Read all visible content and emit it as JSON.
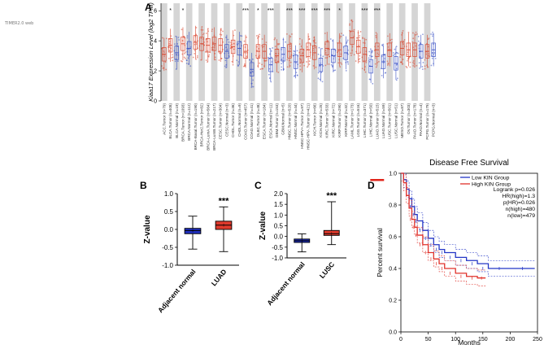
{
  "corner_note": "TIMER2.0 web",
  "chart_data": [
    {
      "panel": "A",
      "type": "box",
      "ylabel": "Kiaa17 Expression Level (log2 TPM)",
      "ylim": [
        0,
        6.5
      ],
      "yticks": [
        "0",
        "2",
        "4",
        "6"
      ],
      "categories": [
        "ACC.Tumor (n=79)",
        "BLCA.Tumor (n=408)",
        "BLCA.Normal (n=19)",
        "BRCA.Tumor (n=1093)",
        "BRCA.Normal (n=112)",
        "BRCA-Basal.Tumor (n=190)",
        "BRCA-Her2.Tumor (n=82)",
        "BRCA-LumA.Tumor (n=564)",
        "BRCA-LumB.Tumor (n=217)",
        "CESC.Tumor (n=304)",
        "CESC.Normal (n=3)",
        "CHOL.Tumor (n=36)",
        "CHOL.Normal (n=9)",
        "COAD.Tumor (n=457)",
        "COAD.Normal (n=41)",
        "DLBC.Tumor (n=48)",
        "ESCA.Tumor (n=184)",
        "ESCA.Normal (n=11)",
        "GBM.Tumor (n=153)",
        "GBM.Normal (n=5)",
        "HNSC.Tumor (n=520)",
        "HNSC.Normal (n=44)",
        "HNSC-HPV+.Tumor (n=97)",
        "HNSC-HPV-.Tumor (n=421)",
        "KICH.Tumor (n=66)",
        "KICH.Normal (n=25)",
        "KIRC.Tumor (n=533)",
        "KIRC.Normal (n=72)",
        "KIRP.Tumor (n=290)",
        "KIRP.Normal (n=32)",
        "LAML.Tumor (n=173)",
        "LGG.Tumor (n=516)",
        "LIHC.Tumor (n=371)",
        "LIHC.Normal (n=50)",
        "LUAD.Tumor (n=515)",
        "LUAD.Normal (n=59)",
        "LUSC.Tumor (n=501)",
        "LUSC.Normal (n=51)",
        "MESO.Tumor (n=87)",
        "OV.Tumor (n=303)",
        "PAAD.Tumor (n=178)",
        "PAAD.Normal (n=4)",
        "PCPG.Tumor (n=179)",
        "PCPG.Normal (n=3)"
      ],
      "medians": [
        3.1,
        3.7,
        3.2,
        3.8,
        3.5,
        3.9,
        3.8,
        3.7,
        3.8,
        3.7,
        3.3,
        3.6,
        3.5,
        3.3,
        2.1,
        3.3,
        3.3,
        2.4,
        3.0,
        3.1,
        3.3,
        2.6,
        3.0,
        3.4,
        3.2,
        2.4,
        3.5,
        3.0,
        3.4,
        3.2,
        4.2,
        3.6,
        3.1,
        2.3,
        3.4,
        2.6,
        3.4,
        2.5,
        3.5,
        3.4,
        3.4,
        3.3,
        3.3,
        3.4
      ],
      "significance": [
        "",
        "*",
        "",
        "*",
        "",
        "",
        "",
        "",
        "",
        "",
        "",
        "",
        "",
        "***",
        "",
        "*",
        "",
        "***",
        "",
        "",
        "***",
        "",
        "***",
        "",
        "***",
        "",
        "***",
        "",
        "*",
        "",
        "",
        "",
        "***",
        "",
        "***",
        "",
        "",
        "",
        "",
        "",
        "",
        "",
        "",
        ""
      ],
      "highlight_category": "LUAD.Tumor (n=515)"
    },
    {
      "panel": "B",
      "type": "box",
      "ylabel": "Z-value",
      "ylim": [
        -1.0,
        1.0
      ],
      "yticks": [
        "-1.0",
        "-0.5",
        "0.0",
        "0.5",
        "1.0"
      ],
      "categories": [
        "Adjacent normal",
        "LUAD"
      ],
      "series": [
        {
          "name": "Adjacent normal",
          "color": "#1f2fbf",
          "min": -0.55,
          "q1": -0.12,
          "median": -0.03,
          "q3": 0.03,
          "max": 0.37
        },
        {
          "name": "LUAD",
          "color": "#e03a2d",
          "min": -0.62,
          "q1": 0.0,
          "median": 0.12,
          "q3": 0.23,
          "max": 0.63
        }
      ],
      "annotation": "***"
    },
    {
      "panel": "C",
      "type": "box",
      "ylabel": "Z-value",
      "ylim": [
        -1.0,
        2.0
      ],
      "yticks": [
        "-1.0",
        "-0.5",
        "0.0",
        "0.5",
        "1.0",
        "1.5",
        "2.0"
      ],
      "categories": [
        "Adjacent normal",
        "LUSC"
      ],
      "series": [
        {
          "name": "Adjacent normal",
          "color": "#1f2fbf",
          "min": -0.72,
          "q1": -0.28,
          "median": -0.2,
          "q3": -0.12,
          "max": 0.12
        },
        {
          "name": "LUSC",
          "color": "#e03a2d",
          "min": -0.38,
          "q1": 0.05,
          "median": 0.13,
          "q3": 0.28,
          "max": 1.62
        }
      ],
      "annotation": "***"
    },
    {
      "panel": "D",
      "type": "line",
      "title": "Disease Free Survival",
      "xlabel": "Months",
      "ylabel": "Percent survival",
      "xlim": [
        0,
        250
      ],
      "ylim": [
        0,
        1.0
      ],
      "xticks": [
        "0",
        "50",
        "100",
        "150",
        "200",
        "250"
      ],
      "yticks": [
        "0.0",
        "0.2",
        "0.4",
        "0.6",
        "0.8",
        "1.0"
      ],
      "legend": [
        "Low KIN Group",
        "High KIN Group"
      ],
      "stats": [
        "Logrank p=0.026",
        "HR(high)=1.3",
        "p(HR)=0.026",
        "n(high)=480",
        "n(low)=479"
      ],
      "series": [
        {
          "name": "Low KIN Group",
          "color": "#2336c6",
          "x": [
            0,
            5,
            10,
            15,
            20,
            25,
            30,
            40,
            50,
            60,
            70,
            80,
            100,
            120,
            140,
            160,
            200,
            245
          ],
          "y": [
            1.0,
            0.96,
            0.9,
            0.84,
            0.79,
            0.74,
            0.7,
            0.64,
            0.59,
            0.55,
            0.52,
            0.5,
            0.47,
            0.45,
            0.43,
            0.4,
            0.4,
            0.4
          ]
        },
        {
          "name": "High KIN Group",
          "color": "#e0312a",
          "x": [
            0,
            5,
            10,
            15,
            20,
            25,
            30,
            40,
            50,
            60,
            70,
            80,
            100,
            120,
            140,
            155
          ],
          "y": [
            1.0,
            0.94,
            0.86,
            0.78,
            0.71,
            0.66,
            0.61,
            0.55,
            0.5,
            0.46,
            0.43,
            0.4,
            0.37,
            0.35,
            0.34,
            0.34
          ]
        }
      ]
    }
  ]
}
